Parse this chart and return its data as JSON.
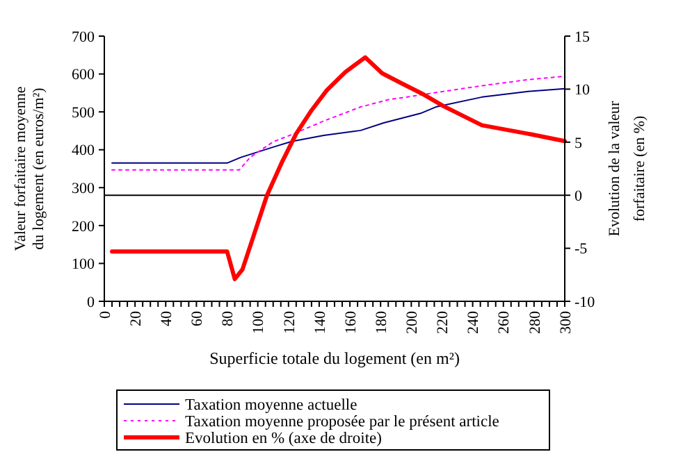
{
  "chart_data": {
    "type": "line",
    "xlabel": "Superficie totale du logement (en m²)",
    "ylabel": "Valeur forfaitaire moyenne du logement (en euros/m²)",
    "y2label": "Evolution de la valeur forfaitaire (en %)",
    "xlim": [
      0,
      300
    ],
    "xticks": [
      0,
      {
        "value": 5,
        "label": null
      },
      {
        "value": 10,
        "label": null
      },
      {
        "value": 15,
        "label": null
      },
      20,
      {
        "value": 25,
        "label": null
      },
      {
        "value": 30,
        "label": null
      },
      {
        "value": 35,
        "label": null
      },
      40,
      {
        "value": 45,
        "label": null
      },
      {
        "value": 50,
        "label": null
      },
      {
        "value": 55,
        "label": null
      },
      60,
      {
        "value": 65,
        "label": null
      },
      {
        "value": 70,
        "label": null
      },
      {
        "value": 75,
        "label": null
      },
      80,
      {
        "value": 85,
        "label": null
      },
      {
        "value": 90,
        "label": null
      },
      {
        "value": 95,
        "label": null
      },
      100,
      {
        "value": 105,
        "label": null
      },
      {
        "value": 110,
        "label": null
      },
      {
        "value": 115,
        "label": null
      },
      120,
      {
        "value": 125,
        "label": null
      },
      {
        "value": 130,
        "label": null
      },
      {
        "value": 135,
        "label": null
      },
      140,
      {
        "value": 145,
        "label": null
      },
      {
        "value": 150,
        "label": null
      },
      {
        "value": 155,
        "label": null
      },
      160,
      {
        "value": 165,
        "label": null
      },
      {
        "value": 170,
        "label": null
      },
      {
        "value": 175,
        "label": null
      },
      180,
      {
        "value": 185,
        "label": null
      },
      {
        "value": 190,
        "label": null
      },
      {
        "value": 195,
        "label": null
      },
      200,
      {
        "value": 205,
        "label": null
      },
      {
        "value": 210,
        "label": null
      },
      {
        "value": 215,
        "label": null
      },
      220,
      {
        "value": 225,
        "label": null
      },
      {
        "value": 230,
        "label": null
      },
      {
        "value": 235,
        "label": null
      },
      240,
      {
        "value": 245,
        "label": null
      },
      {
        "value": 250,
        "label": null
      },
      {
        "value": 255,
        "label": null
      },
      260,
      {
        "value": 265,
        "label": null
      },
      {
        "value": 270,
        "label": null
      },
      {
        "value": 275,
        "label": null
      },
      280,
      {
        "value": 285,
        "label": null
      },
      {
        "value": 290,
        "label": null
      },
      {
        "value": 295,
        "label": null
      },
      300
    ],
    "ylim": [
      0,
      700
    ],
    "yticks": [
      0,
      100,
      200,
      300,
      400,
      500,
      600,
      700
    ],
    "y2lim": [
      -10,
      15
    ],
    "y2ticks": [
      -10,
      -5,
      0,
      5,
      10,
      15
    ],
    "ref_lines": [
      {
        "axis": "y2",
        "value": 0,
        "color": "#000000"
      }
    ],
    "legend": "bottom",
    "grid": false,
    "series": [
      {
        "name": "Taxation moyenne actuelle",
        "color": "#000080",
        "line_style": "solid",
        "x": [
          5,
          80,
          89,
          110,
          122,
          143,
          167,
          182,
          206,
          216,
          246,
          276,
          300
        ],
        "values": [
          365,
          365,
          380,
          407,
          422,
          438,
          451,
          471,
          496,
          513,
          539,
          554,
          561
        ]
      },
      {
        "name": "Taxation moyenne proposée par le présent article",
        "color": "#ff00ff",
        "line_style": "dotted",
        "x": [
          5,
          88,
          95,
          110,
          122,
          143,
          167,
          186,
          197,
          216,
          246,
          276,
          300
        ],
        "values": [
          347,
          347,
          380,
          421,
          440,
          476,
          513,
          533,
          539,
          551,
          569,
          585,
          594
        ]
      },
      {
        "name": "Evolution en % (axe de droite)",
        "color": "#ff0000",
        "line_style": "solid",
        "axis": "y2",
        "x": [
          5,
          80,
          85,
          90,
          106,
          116,
          125,
          135,
          145,
          157,
          170,
          181,
          193,
          208,
          221,
          246,
          276,
          300
        ],
        "values": [
          -5.3,
          -5.3,
          -7.9,
          -7.0,
          0,
          3.2,
          5.8,
          8.0,
          9.9,
          11.6,
          13.0,
          11.5,
          10.6,
          9.5,
          8.4,
          6.6,
          5.8,
          5.1
        ]
      }
    ]
  }
}
